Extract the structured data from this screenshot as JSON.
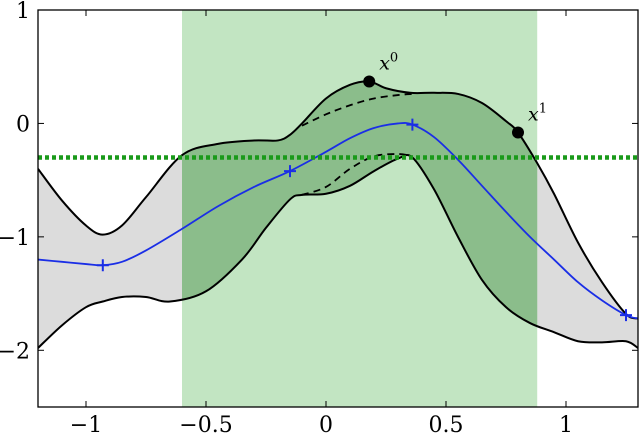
{
  "chart_data": {
    "type": "line",
    "xlim": [
      -1.2,
      1.3
    ],
    "ylim": [
      -2.5,
      1.0
    ],
    "x_ticks": [
      -1,
      -0.5,
      0,
      0.5,
      1
    ],
    "x_tick_labels": [
      "−1",
      "−0.5",
      "0",
      "0.5",
      "1"
    ],
    "y_ticks": [
      1,
      0,
      -1,
      -2
    ],
    "y_tick_labels": [
      "1",
      "0",
      "−1",
      "−2"
    ],
    "grid": false,
    "legend": "none",
    "shaded_region": {
      "x": [
        -0.6,
        0.88
      ],
      "color": "#b3dfb3"
    },
    "threshold": {
      "y": -0.3,
      "color": "#1a9a1a",
      "style": "dotted"
    },
    "band_color": "#dcdcdc",
    "colors": {
      "mean": "#1a2ee6",
      "bounds": "#000000",
      "inner": "#000000"
    },
    "mean": {
      "x": [
        -1.2,
        -1.1,
        -1.0,
        -0.93,
        -0.85,
        -0.75,
        -0.6,
        -0.45,
        -0.3,
        -0.15,
        0.0,
        0.1,
        0.2,
        0.3,
        0.36,
        0.45,
        0.55,
        0.65,
        0.75,
        0.85,
        0.95,
        1.05,
        1.15,
        1.25,
        1.3
      ],
      "y": [
        -1.2,
        -1.22,
        -1.24,
        -1.25,
        -1.22,
        -1.12,
        -0.93,
        -0.73,
        -0.56,
        -0.42,
        -0.25,
        -0.13,
        -0.04,
        0.0,
        -0.01,
        -0.12,
        -0.32,
        -0.55,
        -0.78,
        -1.0,
        -1.2,
        -1.4,
        -1.56,
        -1.69,
        -1.72
      ]
    },
    "upper": {
      "x": [
        -1.2,
        -1.1,
        -1.0,
        -0.93,
        -0.85,
        -0.75,
        -0.6,
        -0.45,
        -0.3,
        -0.2,
        -0.15,
        -0.1,
        0.0,
        0.1,
        0.18,
        0.25,
        0.35,
        0.45,
        0.55,
        0.65,
        0.75,
        0.8,
        0.88,
        0.95,
        1.05,
        1.15,
        1.25,
        1.3
      ],
      "y": [
        -0.4,
        -0.68,
        -0.9,
        -0.98,
        -0.9,
        -0.65,
        -0.28,
        -0.18,
        -0.15,
        -0.15,
        -0.1,
        0.0,
        0.22,
        0.34,
        0.37,
        0.31,
        0.27,
        0.27,
        0.26,
        0.18,
        0.02,
        -0.08,
        -0.35,
        -0.62,
        -1.05,
        -1.4,
        -1.68,
        -1.72
      ]
    },
    "lower": {
      "x": [
        -1.2,
        -1.1,
        -1.0,
        -0.93,
        -0.85,
        -0.75,
        -0.65,
        -0.5,
        -0.35,
        -0.25,
        -0.15,
        -0.1,
        0.0,
        0.1,
        0.2,
        0.3,
        0.36,
        0.45,
        0.55,
        0.65,
        0.75,
        0.85,
        0.95,
        1.05,
        1.15,
        1.25,
        1.3
      ],
      "y": [
        -1.98,
        -1.78,
        -1.62,
        -1.57,
        -1.53,
        -1.53,
        -1.57,
        -1.48,
        -1.2,
        -0.92,
        -0.67,
        -0.63,
        -0.62,
        -0.55,
        -0.42,
        -0.31,
        -0.3,
        -0.58,
        -1.0,
        -1.38,
        -1.62,
        -1.76,
        -1.84,
        -1.92,
        -1.93,
        -1.92,
        -1.98
      ]
    },
    "inner_upper": {
      "x": [
        -0.1,
        0.0,
        0.1,
        0.2,
        0.3,
        0.36
      ],
      "y": [
        -0.02,
        0.08,
        0.16,
        0.22,
        0.25,
        0.26
      ]
    },
    "inner_lower": {
      "x": [
        -0.1,
        0.0,
        0.1,
        0.2,
        0.3,
        0.36
      ],
      "y": [
        -0.63,
        -0.56,
        -0.4,
        -0.29,
        -0.27,
        -0.29
      ]
    },
    "observations": {
      "x": [
        -0.93,
        -0.15,
        0.36,
        1.25
      ],
      "y": [
        -1.25,
        -0.42,
        -0.01,
        -1.69
      ]
    },
    "labeled_points": [
      {
        "x": 0.18,
        "y": 0.37,
        "label": "x",
        "sup": "0"
      },
      {
        "x": 0.8,
        "y": -0.08,
        "label": "x",
        "sup": "1"
      }
    ]
  }
}
